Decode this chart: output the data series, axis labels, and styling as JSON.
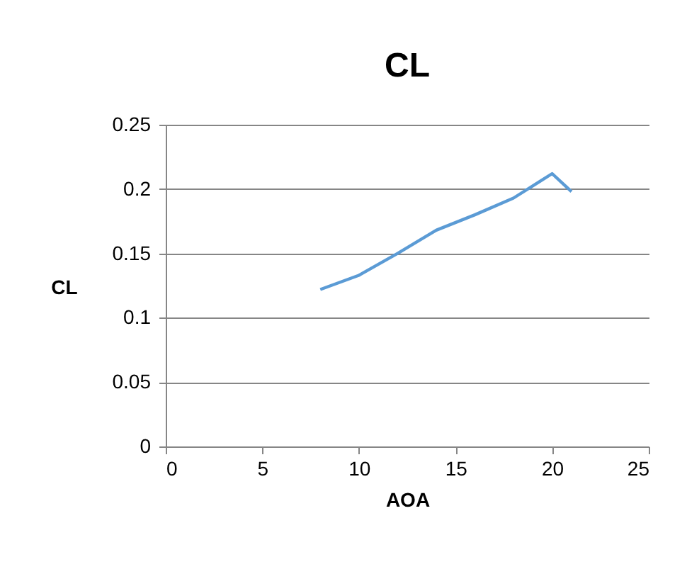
{
  "chart_data": {
    "type": "line",
    "title": "CL",
    "xlabel": "AOA",
    "ylabel": "CL",
    "x": [
      8,
      10,
      12,
      14,
      16,
      18,
      20,
      21
    ],
    "series": [
      {
        "color": "#5b9bd5",
        "values": [
          0.122,
          0.133,
          0.15,
          0.168,
          0.18,
          0.193,
          0.212,
          0.198
        ]
      }
    ],
    "xlim": [
      0,
      25
    ],
    "xticks": [
      0,
      5,
      10,
      15,
      20,
      25
    ],
    "ylim": [
      0,
      0.25
    ],
    "yticks": [
      0,
      0.05,
      0.1,
      0.15,
      0.2,
      0.25
    ],
    "grid": "y",
    "marker": "none",
    "line_style": "solid"
  }
}
